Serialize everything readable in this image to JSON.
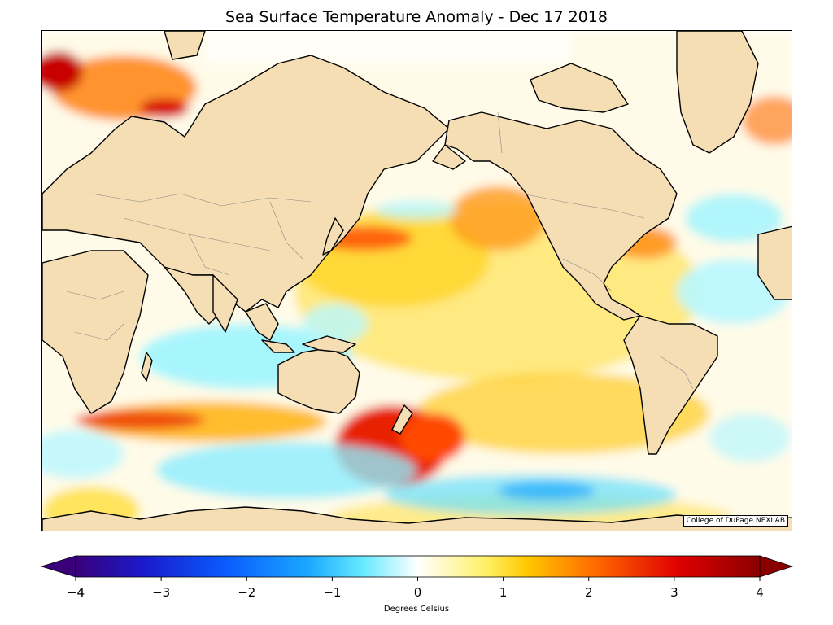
{
  "title": "Sea Surface Temperature Anomaly - Dec 17 2018",
  "credit": "College of DuPage NEXLAB",
  "colorbar": {
    "label": "Degrees Celsius",
    "min": -4,
    "max": 4,
    "ticks": [
      "−4",
      "−3",
      "−2",
      "−1",
      "0",
      "1",
      "2",
      "3",
      "4"
    ],
    "extend": "both",
    "stops": [
      "#3a007a",
      "#1a1acc",
      "#0a5cff",
      "#1aa8ff",
      "#66eaff",
      "#ffffff",
      "#fff066",
      "#ffc800",
      "#ff6a00",
      "#e00000",
      "#8a0000"
    ]
  },
  "colors": {
    "land": "#f5deb3",
    "coast": "#000000",
    "border": "#888888"
  }
}
